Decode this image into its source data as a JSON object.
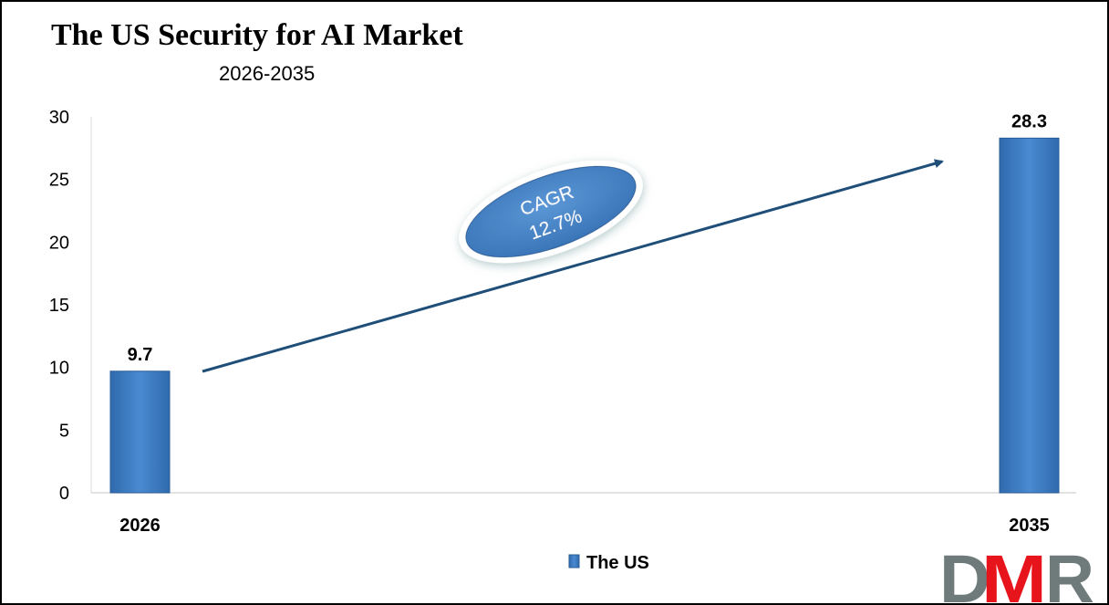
{
  "chart_data": {
    "type": "bar",
    "title": "The US Security for AI Market",
    "subtitle": "2026-2035",
    "categories": [
      "2026",
      "2035"
    ],
    "series": [
      {
        "name": "The US",
        "values": [
          9.7,
          28.3
        ],
        "color": "#3a7cc4"
      }
    ],
    "data_labels": [
      "9.7",
      "28.3"
    ],
    "ylim": [
      0,
      30
    ],
    "yticks": [
      0,
      5,
      10,
      15,
      20,
      25,
      30
    ],
    "grid": false,
    "legend": "bottom-center",
    "annotation": {
      "line1": "CAGR",
      "line2": "12.7%",
      "color": "#4a86c8"
    },
    "arrow_color": "#1f4e79"
  },
  "logo": {
    "text": "DMR",
    "colors": [
      "#6f7b7b",
      "#e8141c"
    ]
  }
}
